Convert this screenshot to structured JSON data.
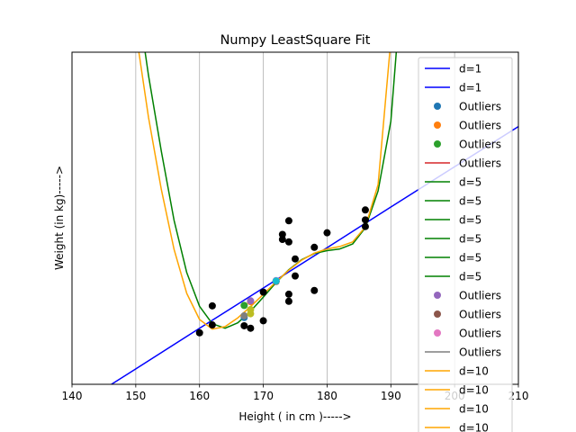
{
  "chart_data": {
    "type": "line",
    "title": "Numpy LeastSquare Fit",
    "xlabel": "Height ( in cm )----->",
    "ylabel": "Weight (in kg)----->",
    "xlim": [
      140,
      210
    ],
    "ylim": [
      25,
      105
    ],
    "xticks": [
      "140",
      "150",
      "160",
      "170",
      "180",
      "190",
      "200",
      "210"
    ],
    "yticks_visible": false,
    "grid": "vertical",
    "legend_position": "top-right",
    "legend": [
      {
        "label": "d=1",
        "type": "line",
        "color": "#0000ff"
      },
      {
        "label": "d=1",
        "type": "line",
        "color": "#0000ff"
      },
      {
        "label": "Outliers",
        "type": "marker",
        "color": "#1f77b4"
      },
      {
        "label": "Outliers",
        "type": "marker",
        "color": "#ff7f0e"
      },
      {
        "label": "Outliers",
        "type": "marker",
        "color": "#2ca02c"
      },
      {
        "label": "Outliers",
        "type": "line",
        "color": "#d62728"
      },
      {
        "label": "d=5",
        "type": "line",
        "color": "#008000"
      },
      {
        "label": "d=5",
        "type": "line",
        "color": "#008000"
      },
      {
        "label": "d=5",
        "type": "line",
        "color": "#008000"
      },
      {
        "label": "d=5",
        "type": "line",
        "color": "#008000"
      },
      {
        "label": "d=5",
        "type": "line",
        "color": "#008000"
      },
      {
        "label": "d=5",
        "type": "line",
        "color": "#008000"
      },
      {
        "label": "Outliers",
        "type": "marker",
        "color": "#9467bd"
      },
      {
        "label": "Outliers",
        "type": "marker",
        "color": "#8c564b"
      },
      {
        "label": "Outliers",
        "type": "marker",
        "color": "#e377c2"
      },
      {
        "label": "Outliers",
        "type": "line",
        "color": "#7f7f7f"
      },
      {
        "label": "d=10",
        "type": "line",
        "color": "#ffa500"
      },
      {
        "label": "d=10",
        "type": "line",
        "color": "#ffa500"
      },
      {
        "label": "d=10",
        "type": "line",
        "color": "#ffa500"
      },
      {
        "label": "d=10",
        "type": "line",
        "color": "#ffa500"
      }
    ],
    "scatter_points": [
      {
        "x": 160,
        "y": 37.4
      },
      {
        "x": 162,
        "y": 43.9
      },
      {
        "x": 162,
        "y": 39.3
      },
      {
        "x": 167,
        "y": 39.1
      },
      {
        "x": 168,
        "y": 38.5
      },
      {
        "x": 170,
        "y": 40.3
      },
      {
        "x": 170,
        "y": 47.2
      },
      {
        "x": 172,
        "y": 49.8
      },
      {
        "x": 173,
        "y": 61.1
      },
      {
        "x": 173,
        "y": 59.9
      },
      {
        "x": 174,
        "y": 64.4
      },
      {
        "x": 174,
        "y": 59.3
      },
      {
        "x": 174,
        "y": 46.7
      },
      {
        "x": 174,
        "y": 45.0
      },
      {
        "x": 175,
        "y": 55.2
      },
      {
        "x": 175,
        "y": 51.1
      },
      {
        "x": 178,
        "y": 47.6
      },
      {
        "x": 178,
        "y": 58.0
      },
      {
        "x": 180,
        "y": 61.5
      },
      {
        "x": 186,
        "y": 67.0
      },
      {
        "x": 186,
        "y": 64.6
      },
      {
        "x": 186,
        "y": 63.0
      }
    ],
    "outlier_points": [
      {
        "x": 167,
        "y": 41.1,
        "color": "#1f77b4"
      },
      {
        "x": 168,
        "y": 44.9,
        "color": "#ff7f0e"
      },
      {
        "x": 167,
        "y": 44.0,
        "color": "#2ca02c"
      },
      {
        "x": 168,
        "y": 45.1,
        "color": "#9467bd"
      },
      {
        "x": 172,
        "y": 49.8,
        "color": "#8c564b"
      },
      {
        "x": 172,
        "y": 50.0,
        "color": "#e377c2"
      },
      {
        "x": 167,
        "y": 41.5,
        "color": "#7f7f7f"
      },
      {
        "x": 168,
        "y": 42.0,
        "color": "#bcbd22"
      },
      {
        "x": 168,
        "y": 43.0,
        "color": "#bcbd22"
      },
      {
        "x": 172,
        "y": 49.9,
        "color": "#17becf"
      }
    ],
    "series": [
      {
        "name": "d=1",
        "color": "#0000ff",
        "x": [
          140,
          150,
          160,
          170,
          180,
          190,
          200,
          210
        ],
        "y": [
          19.0,
          28.7,
          38.5,
          48.2,
          57.9,
          67.7,
          77.4,
          87.1
        ]
      },
      {
        "name": "d=5",
        "color": "#008000",
        "x": [
          151,
          152,
          154,
          156,
          158,
          160,
          162,
          164,
          166,
          168,
          170,
          172,
          174,
          176,
          178,
          180,
          182,
          184,
          186,
          188,
          190,
          191
        ],
        "y": [
          110,
          99.4,
          81.2,
          64.5,
          51.9,
          43.8,
          39.6,
          38.5,
          39.8,
          42.6,
          46.0,
          49.5,
          52.6,
          55.0,
          56.5,
          57.2,
          57.6,
          58.8,
          62.7,
          71.6,
          88.4,
          108
        ]
      },
      {
        "name": "d=10",
        "color": "#ffa500",
        "x": [
          150,
          152,
          154,
          156,
          158,
          160,
          162,
          164,
          166,
          168,
          170,
          172,
          174,
          176,
          178,
          180,
          182,
          184,
          186,
          188,
          190
        ],
        "y": [
          110,
          89.3,
          72.0,
          57.5,
          46.9,
          40.6,
          38.3,
          38.9,
          41.0,
          43.7,
          46.7,
          49.7,
          52.5,
          54.9,
          56.6,
          57.6,
          58.2,
          59.3,
          62.9,
          73.1,
          108
        ]
      }
    ]
  }
}
